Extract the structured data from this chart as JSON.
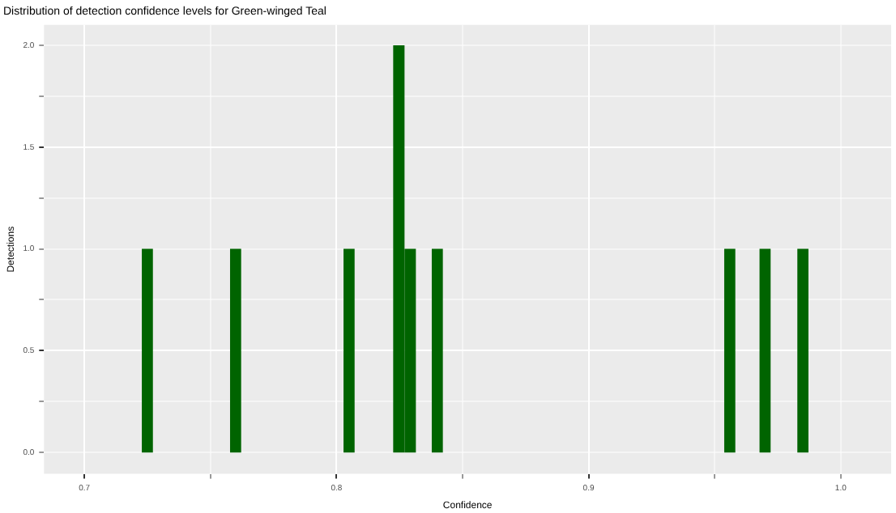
{
  "chart_data": {
    "type": "histogram",
    "title": "Distribution of detection confidence levels for Green-winged Teal",
    "xlabel": "Confidence",
    "ylabel": "Detections",
    "bins": [
      0.7228,
      0.7272,
      0.7578,
      0.7622,
      0.8028,
      0.8072,
      0.8225,
      0.827,
      0.8315,
      0.8378,
      0.8422,
      0.9538,
      0.9582,
      0.9678,
      0.9722,
      0.9828,
      0.9872
    ],
    "values": [
      1,
      0,
      1,
      0,
      1,
      0,
      2,
      1,
      0,
      1,
      0,
      1,
      0,
      1,
      0,
      1
    ],
    "color": "#006400",
    "xlim": [
      0.684,
      1.02
    ],
    "xticks": [
      0.7,
      {
        "value": 0.75,
        "label": null
      },
      0.8,
      {
        "value": 0.85,
        "label": null
      },
      0.9,
      {
        "value": 0.95,
        "label": null
      },
      {
        "value": 1,
        "label": "1.0"
      }
    ],
    "ylim": [
      -0.105,
      2.1
    ],
    "yticks": [
      {
        "value": 0,
        "label": "0.0"
      },
      {
        "value": 0.25,
        "label": null
      },
      0.5,
      {
        "value": 0.75,
        "label": null
      },
      {
        "value": 1,
        "label": "1.0"
      },
      {
        "value": 1.25,
        "label": null
      },
      1.5,
      {
        "value": 1.75,
        "label": null
      },
      {
        "value": 2,
        "label": "2.0"
      }
    ],
    "grid": true,
    "legend": false
  }
}
